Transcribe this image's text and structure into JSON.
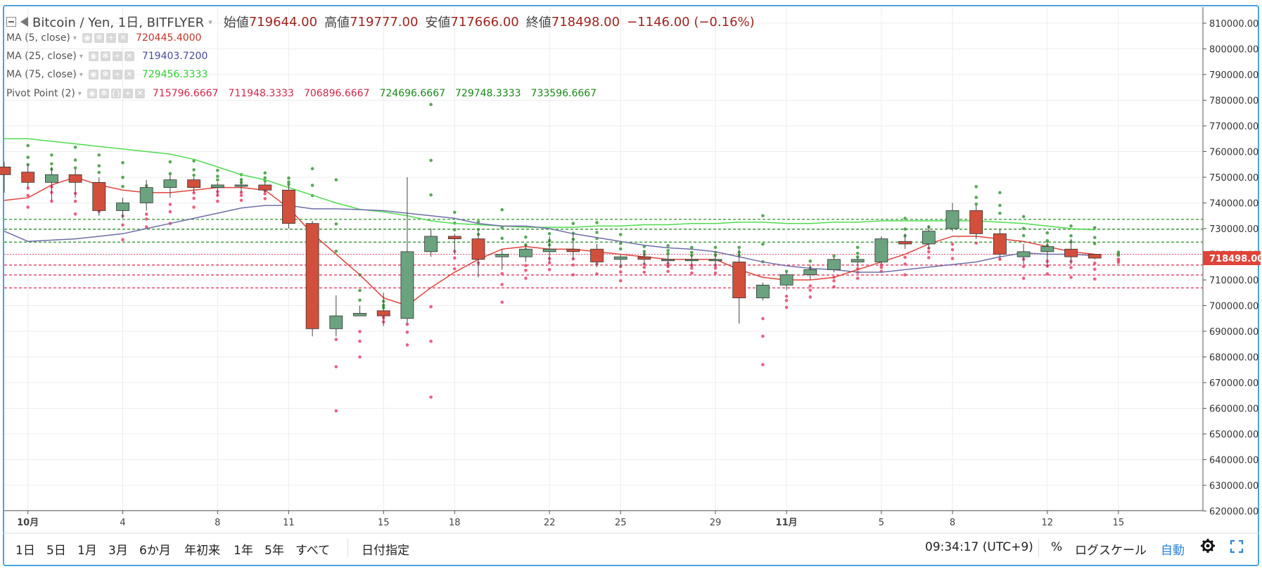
{
  "header": {
    "symbol": "Bitcoin / Yen, 1日, BITFLYER",
    "open_label": "始値",
    "open": "719644.00",
    "high_label": "高値",
    "high": "719777.00",
    "low_label": "安値",
    "low": "717666.00",
    "close_label": "終値",
    "close": "718498.00",
    "change": "−1146.00 (−0.16%)"
  },
  "indicators": [
    {
      "name": "MA (5, close)",
      "value": "720445.4000",
      "color": "#c0362c"
    },
    {
      "name": "MA (25, close)",
      "value": "719403.7200",
      "color": "#4a4a9a"
    },
    {
      "name": "MA (75, close)",
      "value": "729456.3333",
      "color": "#33cc33"
    }
  ],
  "pivot": {
    "name": "Pivot Point (2)",
    "values": [
      "715796.6667",
      "711948.3333",
      "706896.6667",
      "724696.6667",
      "729748.3333",
      "733596.6667"
    ],
    "colors": [
      "#d0284b",
      "#d0284b",
      "#d0284b",
      "#168a16",
      "#168a16",
      "#168a16"
    ]
  },
  "price_tag": "718498.00",
  "colors": {
    "up": "#6aa37e",
    "down": "#d24f3c",
    "ma5": "#e0443a",
    "ma25": "#6e6ea8",
    "ma75": "#4fdc4f",
    "pivot_support": "#e8456a",
    "pivot_resist": "#3a9a3a",
    "frame": "#4aa3df"
  },
  "toolbar": {
    "ranges": [
      "1日",
      "5日",
      "1月",
      "3月",
      "6か月",
      "年初来",
      "1年",
      "5年",
      "すべて"
    ],
    "date_btn": "日付指定",
    "time": "09:34:17 (UTC+9)",
    "percent": "%",
    "log": "ログスケール",
    "auto": "自動",
    "settings_icon": "gear-icon",
    "fullscreen_icon": "fullscreen-icon"
  },
  "chart_data": {
    "type": "candlestick",
    "y_axis": {
      "labels": [
        "810000.00",
        "800000.00",
        "790000.00",
        "780000.00",
        "770000.00",
        "760000.00",
        "750000.00",
        "740000.00",
        "730000.00",
        "720000.00",
        "710000.00",
        "700000.00",
        "690000.00",
        "680000.00",
        "670000.00",
        "660000.00",
        "650000.00",
        "640000.00",
        "630000.00",
        "620000.00"
      ],
      "min": 620000,
      "max": 810000
    },
    "x_axis": {
      "labels": [
        {
          "label": "10月",
          "i": 1,
          "bold": true
        },
        {
          "label": "4",
          "i": 5
        },
        {
          "label": "8",
          "i": 9
        },
        {
          "label": "11",
          "i": 12
        },
        {
          "label": "15",
          "i": 16
        },
        {
          "label": "18",
          "i": 19
        },
        {
          "label": "22",
          "i": 23
        },
        {
          "label": "25",
          "i": 26
        },
        {
          "label": "29",
          "i": 30
        },
        {
          "label": "11月",
          "i": 33,
          "bold": true
        },
        {
          "label": "5",
          "i": 37
        },
        {
          "label": "8",
          "i": 40
        },
        {
          "label": "12",
          "i": 44
        },
        {
          "label": "15",
          "i": 47
        }
      ]
    },
    "candles": [
      {
        "o": 754000,
        "h": 756000,
        "l": 744000,
        "c": 751000
      },
      {
        "o": 752000,
        "h": 755000,
        "l": 746000,
        "c": 748000
      },
      {
        "o": 748000,
        "h": 754000,
        "l": 741000,
        "c": 751000
      },
      {
        "o": 751000,
        "h": 753000,
        "l": 742000,
        "c": 748000
      },
      {
        "o": 748000,
        "h": 750000,
        "l": 735000,
        "c": 737000
      },
      {
        "o": 737000,
        "h": 742000,
        "l": 734000,
        "c": 740000
      },
      {
        "o": 740000,
        "h": 749000,
        "l": 737000,
        "c": 746000
      },
      {
        "o": 746000,
        "h": 751000,
        "l": 742000,
        "c": 749000
      },
      {
        "o": 749000,
        "h": 750000,
        "l": 744000,
        "c": 746000
      },
      {
        "o": 746000,
        "h": 748000,
        "l": 743000,
        "c": 747000
      },
      {
        "o": 747000,
        "h": 749000,
        "l": 744000,
        "c": 747000
      },
      {
        "o": 747000,
        "h": 748000,
        "l": 744000,
        "c": 745000
      },
      {
        "o": 745000,
        "h": 747000,
        "l": 730000,
        "c": 732000
      },
      {
        "o": 732000,
        "h": 733000,
        "l": 688000,
        "c": 691000
      },
      {
        "o": 691000,
        "h": 704000,
        "l": 688000,
        "c": 696000
      },
      {
        "o": 696000,
        "h": 700000,
        "l": 696000,
        "c": 697000
      },
      {
        "o": 698000,
        "h": 705000,
        "l": 692000,
        "c": 696000
      },
      {
        "o": 695000,
        "h": 750000,
        "l": 693000,
        "c": 721000
      },
      {
        "o": 721000,
        "h": 730000,
        "l": 719000,
        "c": 727000
      },
      {
        "o": 727000,
        "h": 728000,
        "l": 720000,
        "c": 726000
      },
      {
        "o": 726000,
        "h": 729000,
        "l": 711000,
        "c": 718000
      },
      {
        "o": 719000,
        "h": 722000,
        "l": 714000,
        "c": 720000
      },
      {
        "o": 719000,
        "h": 724000,
        "l": 717000,
        "c": 722000
      },
      {
        "o": 721000,
        "h": 727000,
        "l": 717000,
        "c": 722000
      },
      {
        "o": 722000,
        "h": 728000,
        "l": 718000,
        "c": 721000
      },
      {
        "o": 722000,
        "h": 724000,
        "l": 715000,
        "c": 717000
      },
      {
        "o": 718000,
        "h": 720000,
        "l": 715000,
        "c": 719000
      },
      {
        "o": 719000,
        "h": 721000,
        "l": 716000,
        "c": 718000
      },
      {
        "o": 718000,
        "h": 720000,
        "l": 715000,
        "c": 718000
      },
      {
        "o": 718000,
        "h": 720000,
        "l": 715000,
        "c": 718000
      },
      {
        "o": 718000,
        "h": 720000,
        "l": 715000,
        "c": 718000
      },
      {
        "o": 717000,
        "h": 722000,
        "l": 693000,
        "c": 703000
      },
      {
        "o": 703000,
        "h": 709000,
        "l": 702000,
        "c": 708000
      },
      {
        "o": 708000,
        "h": 713000,
        "l": 706000,
        "c": 712000
      },
      {
        "o": 712000,
        "h": 716000,
        "l": 710000,
        "c": 714000
      },
      {
        "o": 714000,
        "h": 719000,
        "l": 713000,
        "c": 718000
      },
      {
        "o": 717000,
        "h": 719000,
        "l": 715000,
        "c": 718000
      },
      {
        "o": 717000,
        "h": 727000,
        "l": 716000,
        "c": 726000
      },
      {
        "o": 725000,
        "h": 728000,
        "l": 722000,
        "c": 724000
      },
      {
        "o": 724000,
        "h": 731000,
        "l": 722000,
        "c": 729000
      },
      {
        "o": 730000,
        "h": 740000,
        "l": 729000,
        "c": 737000
      },
      {
        "o": 737000,
        "h": 739000,
        "l": 726000,
        "c": 728000
      },
      {
        "o": 728000,
        "h": 730000,
        "l": 718000,
        "c": 720000
      },
      {
        "o": 719000,
        "h": 724000,
        "l": 716000,
        "c": 721000
      },
      {
        "o": 721000,
        "h": 725000,
        "l": 715000,
        "c": 723000
      },
      {
        "o": 722000,
        "h": 726000,
        "l": 716000,
        "c": 719000
      },
      {
        "o": 720000,
        "h": 720000,
        "l": 718000,
        "c": 718500
      }
    ],
    "ma5": [
      741000,
      742000,
      747000,
      750000,
      747000,
      745000,
      744000,
      744000,
      745000,
      746000,
      746000,
      745000,
      738000,
      728000,
      720000,
      712000,
      703000,
      700000,
      707000,
      713000,
      718000,
      722000,
      723000,
      722000,
      722000,
      721000,
      720000,
      719000,
      718000,
      718000,
      718000,
      714000,
      711000,
      710000,
      710000,
      711000,
      714000,
      717000,
      720000,
      724000,
      727000,
      727000,
      726000,
      725000,
      723000,
      721000,
      720000
    ],
    "ma25": [
      729000,
      725000,
      725500,
      726000,
      727000,
      728000,
      730000,
      732000,
      734000,
      736000,
      738000,
      739000,
      739000,
      737700,
      737700,
      737400,
      737000,
      736000,
      735000,
      734000,
      732000,
      731000,
      731000,
      730000,
      728000,
      726500,
      725000,
      723500,
      722500,
      722000,
      721000,
      719000,
      717000,
      715500,
      714500,
      714000,
      713000,
      713000,
      714000,
      715000,
      716000,
      717000,
      719000,
      720500,
      720000,
      720000,
      719500
    ],
    "ma75": [
      765000,
      765000,
      764000,
      763000,
      762000,
      761000,
      760000,
      759000,
      757000,
      754000,
      751000,
      749000,
      746000,
      743000,
      740000,
      737500,
      736500,
      735000,
      733000,
      732000,
      731500,
      731000,
      730500,
      730500,
      730500,
      731000,
      731000,
      731500,
      731500,
      732000,
      732000,
      732500,
      732500,
      732000,
      732000,
      732500,
      732500,
      733000,
      733000,
      733000,
      733000,
      733000,
      732500,
      732000,
      731000,
      730000,
      729500
    ],
    "pivot_levels": [
      715796.6667,
      711948.3333,
      706896.6667,
      724696.6667,
      729748.3333,
      733596.6667,
      720000
    ]
  }
}
